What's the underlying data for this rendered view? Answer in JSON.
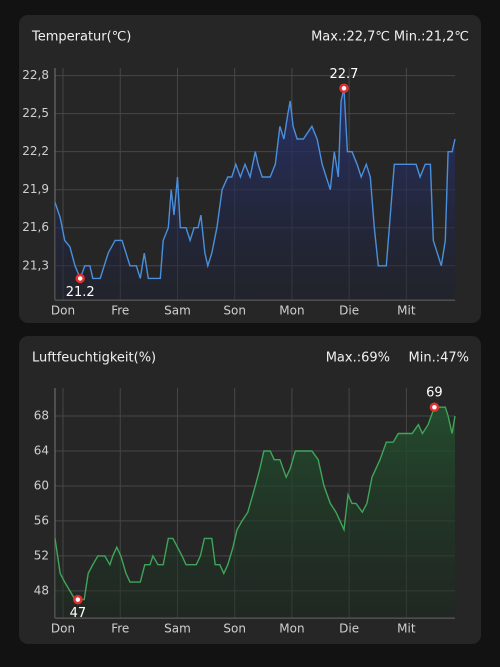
{
  "chart_data": [
    {
      "type": "line",
      "title": "Temperatur(℃)",
      "max_label": "Max.:22,7℃",
      "min_label": "Min.:21,2℃",
      "x": [
        -0.14,
        -0.05,
        0.03,
        0.12,
        0.21,
        0.3,
        0.38,
        0.47,
        0.52,
        0.65,
        0.72,
        0.79,
        0.91,
        1.03,
        1.1,
        1.17,
        1.28,
        1.35,
        1.42,
        1.49,
        1.7,
        1.75,
        1.84,
        1.89,
        1.94,
        2.0,
        2.05,
        2.15,
        2.22,
        2.29,
        2.36,
        2.41,
        2.48,
        2.53,
        2.6,
        2.69,
        2.78,
        2.88,
        2.95,
        3.02,
        3.1,
        3.18,
        3.27,
        3.36,
        3.41,
        3.48,
        3.62,
        3.71,
        3.79,
        3.86,
        3.93,
        3.97,
        4.02,
        4.09,
        4.2,
        4.35,
        4.44,
        4.53,
        4.6,
        4.67,
        4.74,
        4.81,
        4.86,
        4.91,
        4.97,
        5.05,
        5.14,
        5.21,
        5.3,
        5.37,
        5.44,
        5.51,
        5.65,
        5.72,
        5.79,
        5.89,
        6.17,
        6.24,
        6.33,
        6.42,
        6.47,
        6.54,
        6.61,
        6.68,
        6.73,
        6.8,
        6.85
      ],
      "values": [
        21.8,
        21.68,
        21.5,
        21.45,
        21.3,
        21.2,
        21.3,
        21.3,
        21.2,
        21.2,
        21.3,
        21.4,
        21.5,
        21.5,
        21.4,
        21.3,
        21.3,
        21.2,
        21.4,
        21.2,
        21.2,
        21.5,
        21.6,
        21.9,
        21.7,
        22.0,
        21.6,
        21.6,
        21.5,
        21.6,
        21.6,
        21.7,
        21.4,
        21.3,
        21.4,
        21.6,
        21.9,
        22.0,
        22.0,
        22.1,
        22.0,
        22.1,
        22.0,
        22.2,
        22.1,
        22.0,
        22.0,
        22.1,
        22.4,
        22.3,
        22.5,
        22.6,
        22.4,
        22.3,
        22.3,
        22.4,
        22.3,
        22.1,
        22.0,
        21.9,
        22.2,
        22.0,
        22.6,
        22.7,
        22.2,
        22.2,
        22.1,
        22.0,
        22.1,
        22.0,
        21.6,
        21.3,
        21.3,
        21.7,
        22.1,
        22.1,
        22.1,
        22.0,
        22.1,
        22.1,
        21.5,
        21.4,
        21.3,
        21.5,
        22.2,
        22.2,
        22.3
      ],
      "color": "#4a8fdc",
      "fill": "#1f2a52",
      "xlim": [
        -0.14,
        6.85
      ],
      "xticks": [
        {
          "value": 0,
          "label": "Don"
        },
        {
          "value": 1,
          "label": "Fre"
        },
        {
          "value": 2,
          "label": "Sam"
        },
        {
          "value": 3,
          "label": "Son"
        },
        {
          "value": 4,
          "label": "Mon"
        },
        {
          "value": 5,
          "label": "Die"
        },
        {
          "value": 6,
          "label": "Mit"
        }
      ],
      "ylim": [
        21.03,
        22.86
      ],
      "yticks": [
        {
          "value": 21.3,
          "label": "21,3"
        },
        {
          "value": 21.6,
          "label": "21,6"
        },
        {
          "value": 21.9,
          "label": "21,9"
        },
        {
          "value": 22.2,
          "label": "22,2"
        },
        {
          "value": 22.5,
          "label": "22,5"
        },
        {
          "value": 22.8,
          "label": "22,8"
        }
      ],
      "grid": true,
      "annotations": [
        {
          "x": 4.91,
          "value": 22.7,
          "position": "above"
        },
        {
          "x": 0.3,
          "value": 21.2,
          "position": "below"
        }
      ]
    },
    {
      "type": "line",
      "title": "Luftfeuchtigkeit(%)",
      "max_label": "Max.:69%",
      "min_label": "Min.:47%",
      "x": [
        -0.14,
        -0.05,
        0.03,
        0.12,
        0.21,
        0.3,
        0.37,
        0.44,
        0.52,
        0.61,
        0.73,
        0.82,
        0.87,
        0.94,
        1.01,
        1.1,
        1.17,
        1.35,
        1.43,
        1.52,
        1.57,
        1.66,
        1.75,
        1.84,
        1.92,
        2.0,
        2.08,
        2.15,
        2.33,
        2.4,
        2.47,
        2.6,
        2.66,
        2.74,
        2.81,
        2.88,
        2.97,
        3.04,
        3.13,
        3.23,
        3.36,
        3.44,
        3.51,
        3.62,
        3.69,
        3.79,
        3.9,
        3.97,
        4.06,
        4.35,
        4.46,
        4.56,
        4.67,
        4.77,
        4.84,
        4.91,
        4.98,
        5.05,
        5.12,
        5.23,
        5.31,
        5.4,
        5.54,
        5.65,
        5.77,
        5.86,
        6.1,
        6.21,
        6.28,
        6.38,
        6.49,
        6.59,
        6.68,
        6.73,
        6.8,
        6.85
      ],
      "values": [
        54,
        50,
        49,
        48,
        47,
        47,
        47,
        50,
        51,
        52,
        52,
        51,
        52,
        53,
        52,
        50,
        49,
        49,
        51,
        51,
        52,
        51,
        51,
        54,
        54,
        53,
        52,
        51,
        51,
        52,
        54,
        54,
        51,
        51,
        50,
        51,
        53,
        55,
        56,
        57,
        60,
        62,
        64,
        64,
        63,
        63,
        61,
        62,
        64,
        64,
        63,
        60,
        58,
        57,
        56,
        55,
        59,
        58,
        58,
        57,
        58,
        61,
        63,
        65,
        65,
        66,
        66,
        67,
        66,
        67,
        69,
        69,
        69,
        68,
        66,
        68
      ],
      "color": "#3fa55a",
      "fill": "#1d3a26",
      "xlim": [
        -0.14,
        6.85
      ],
      "xticks": [
        {
          "value": 0,
          "label": "Don"
        },
        {
          "value": 1,
          "label": "Fre"
        },
        {
          "value": 2,
          "label": "Sam"
        },
        {
          "value": 3,
          "label": "Son"
        },
        {
          "value": 4,
          "label": "Mon"
        },
        {
          "value": 5,
          "label": "Die"
        },
        {
          "value": 6,
          "label": "Mit"
        }
      ],
      "ylim": [
        44.9,
        71.2
      ],
      "yticks": [
        48,
        52,
        56,
        60,
        64,
        68
      ],
      "grid": true,
      "annotations": [
        {
          "x": 6.49,
          "value": 69,
          "position": "above"
        },
        {
          "x": 0.26,
          "value": 47,
          "position": "below"
        }
      ]
    }
  ]
}
